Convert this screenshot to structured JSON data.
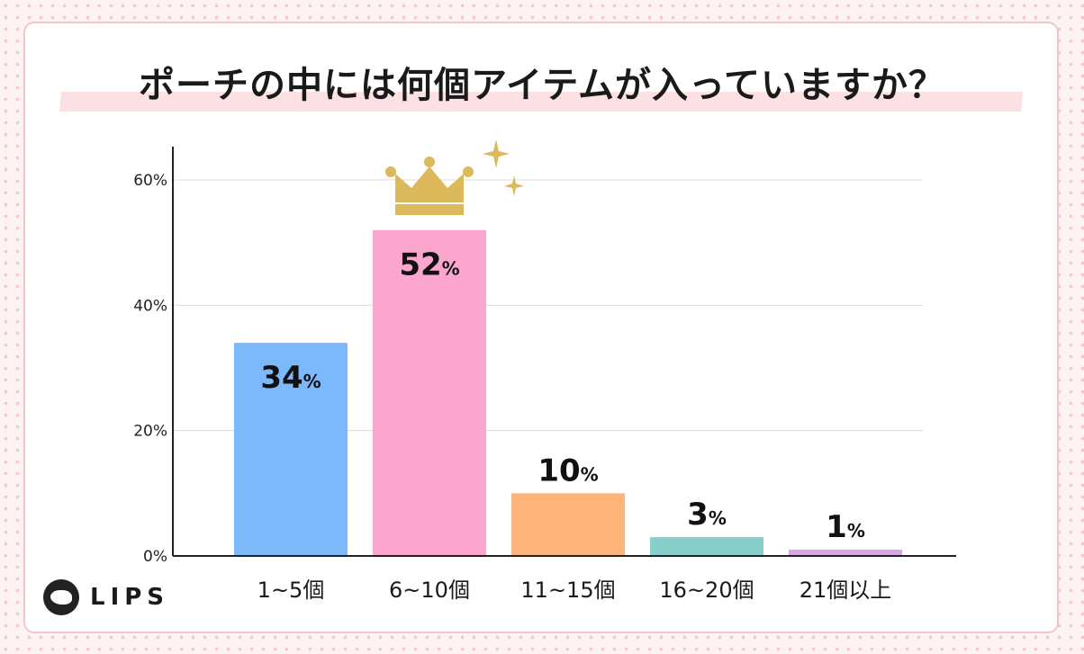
{
  "chart_data": {
    "type": "bar",
    "title": "ポーチの中には何個アイテムが入っていますか？",
    "categories": [
      "1~5個",
      "6~10個",
      "11~15個",
      "16~20個",
      "21個以上"
    ],
    "values": [
      34,
      52,
      10,
      3,
      1
    ],
    "value_labels": [
      "34",
      "52",
      "10",
      "3",
      "1"
    ],
    "value_unit": "%",
    "colors": [
      "#7cb9fb",
      "#fca6cf",
      "#fdb37a",
      "#86cfcd",
      "#d6a8e3"
    ],
    "yticks": [
      "0%",
      "20%",
      "40%",
      "60%"
    ],
    "ytick_values": [
      0,
      20,
      40,
      60
    ],
    "ylim": [
      0,
      60
    ],
    "grid": true,
    "highlight_icon": "crown-icon"
  },
  "brand": {
    "logo_text": "LIPS",
    "logo_icon": "lips-logo-icon"
  }
}
